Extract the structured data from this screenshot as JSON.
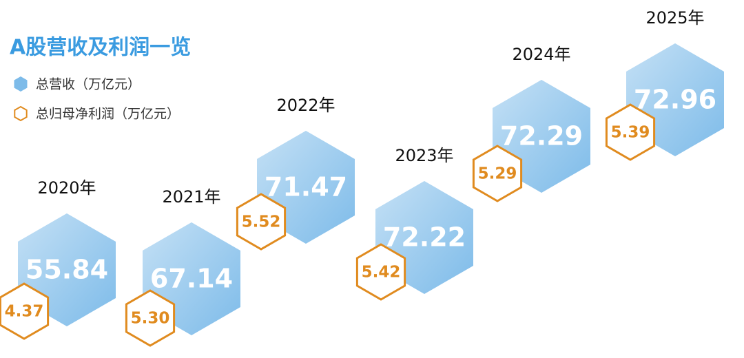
{
  "chart_data": {
    "type": "hexagon",
    "title": "A股营收及利润一览",
    "categories": [
      "2020年",
      "2021年",
      "2022年",
      "2023年",
      "2024年",
      "2025年"
    ],
    "series": [
      {
        "name": "总营收（万亿元）",
        "color": "#7dbbe9",
        "values": [
          55.84,
          67.14,
          71.47,
          72.22,
          72.29,
          72.96
        ]
      },
      {
        "name": "总归母净利润（万亿元）",
        "color": "#e08b1f",
        "values": [
          4.37,
          5.3,
          5.52,
          5.42,
          5.29,
          5.39
        ],
        "value_labels": [
          "4.37",
          "5.30",
          "5.52",
          "5.42",
          "5.29",
          "5.39"
        ]
      }
    ]
  }
}
